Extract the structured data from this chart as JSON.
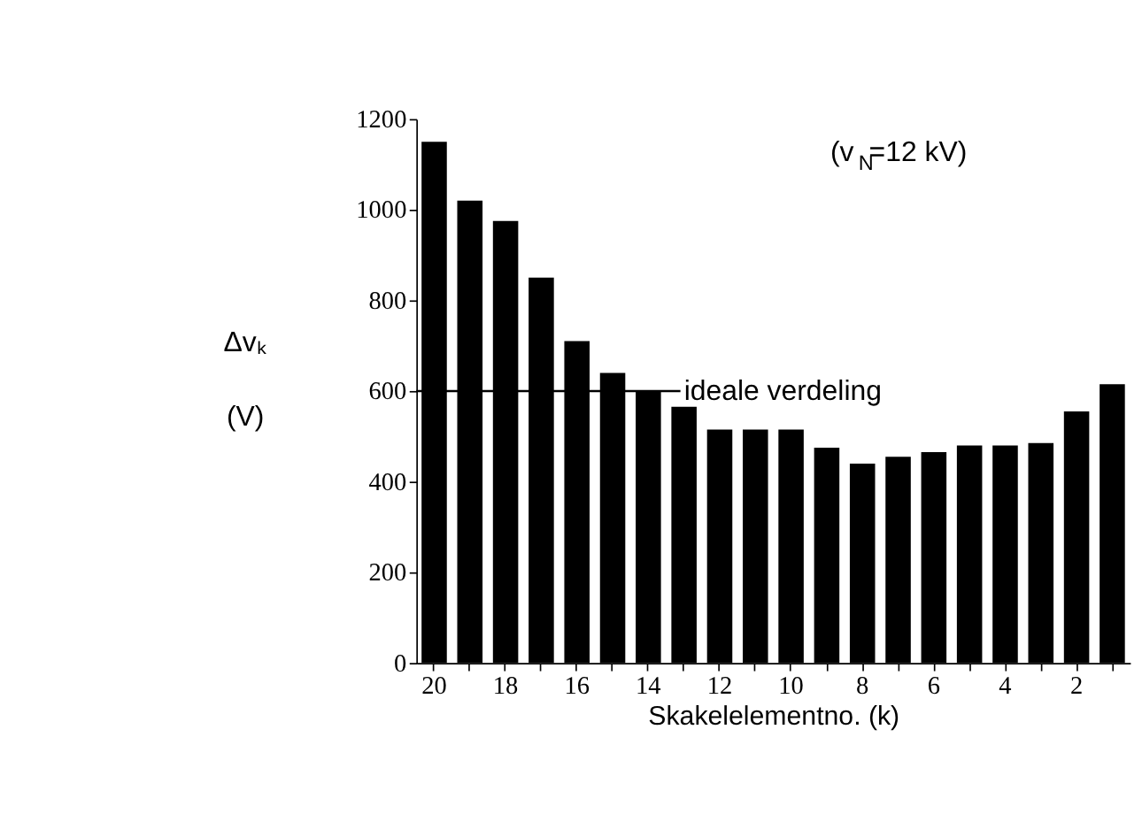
{
  "chart_data": {
    "type": "bar",
    "categories": [
      "20",
      null,
      "18",
      null,
      "16",
      null,
      "14",
      null,
      "12",
      null,
      "10",
      null,
      "8",
      null,
      "6",
      null,
      "4",
      null,
      "2",
      null
    ],
    "values": [
      1150,
      1020,
      975,
      850,
      710,
      640,
      600,
      565,
      515,
      515,
      515,
      475,
      440,
      455,
      465,
      480,
      480,
      485,
      555,
      615
    ],
    "color": "#000000",
    "ylim": [
      0,
      1200
    ],
    "yticks": [
      0,
      200,
      400,
      600,
      800,
      1000,
      1200
    ],
    "xlabel": "Skakelelementno. (k)",
    "ylabel": "Δvₖ (V)",
    "annotations": [
      "(v$_{N}$=12 kV)"
    ],
    "ref_lines": [
      {
        "axis": "y",
        "value": 600,
        "label": "ideale verdeling",
        "color": "#000000"
      }
    ],
    "grid": false
  }
}
